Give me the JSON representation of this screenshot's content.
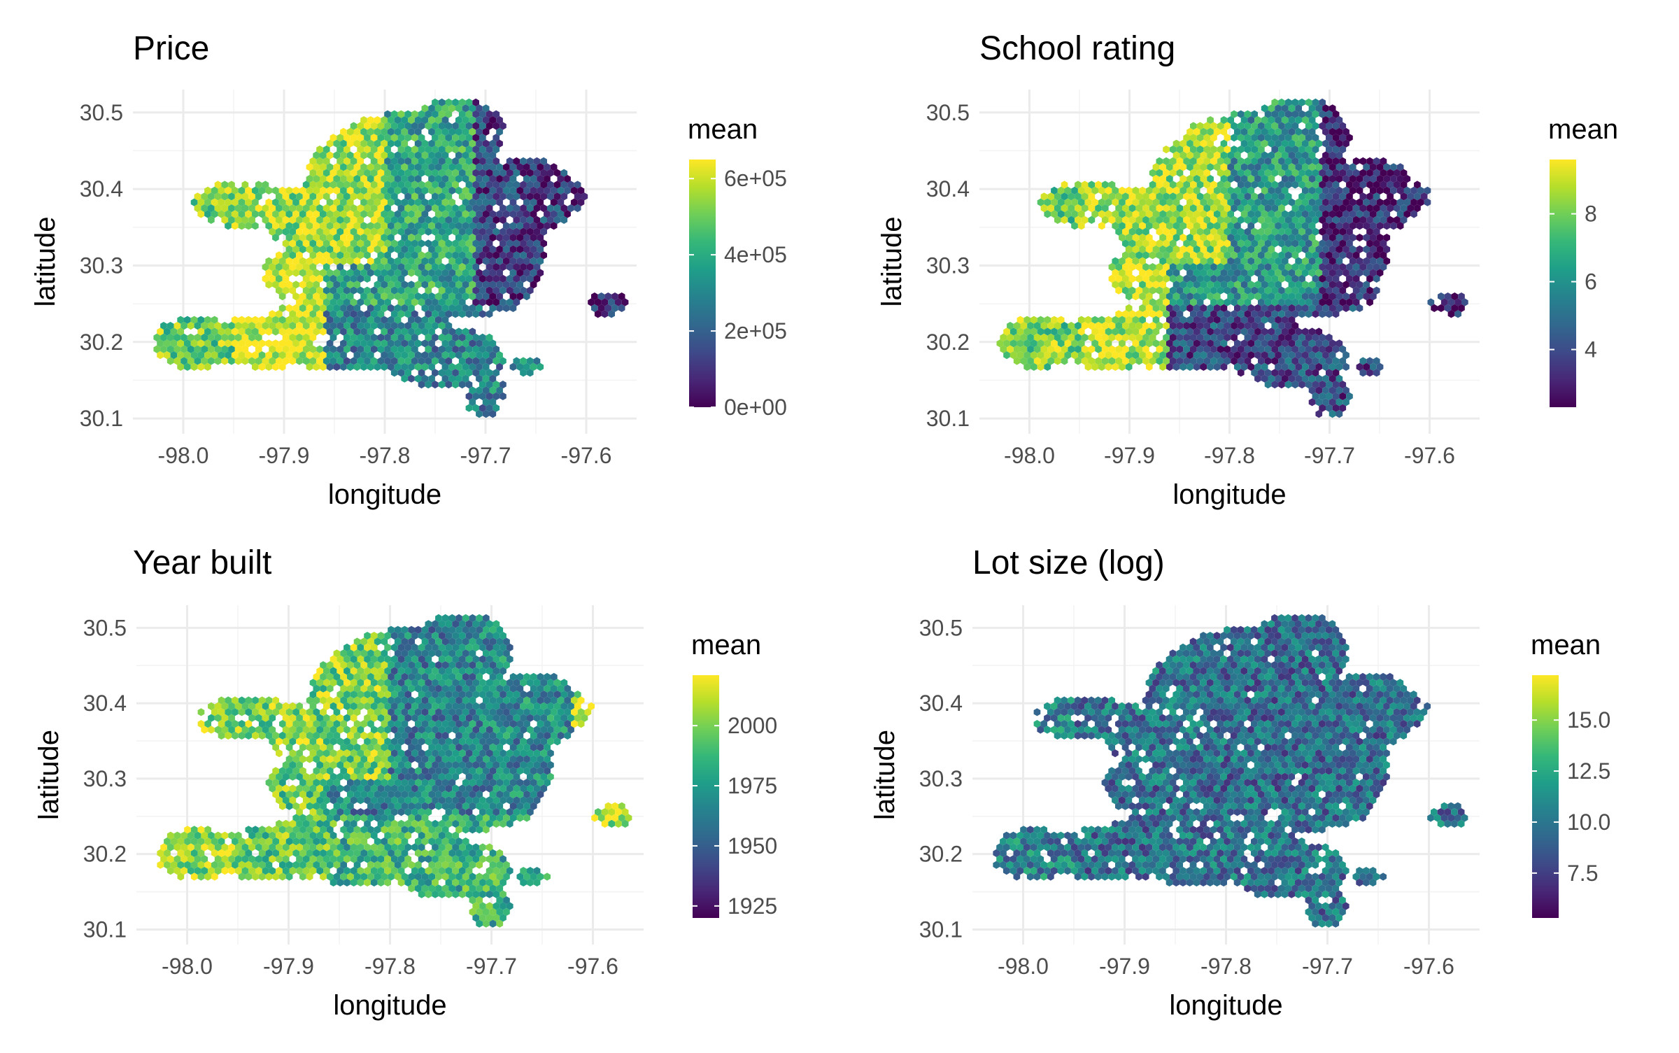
{
  "colors": {
    "viridis": [
      "#440154",
      "#482777",
      "#3e4a89",
      "#31688e",
      "#26828e",
      "#1f9e89",
      "#35b779",
      "#6ece58",
      "#b5de2b",
      "#fde725"
    ],
    "grid": "#ebebeb",
    "tick_text": "#4d4d4d"
  },
  "chart_data": [
    {
      "type": "heatmap",
      "title": "Price",
      "xlabel": "longitude",
      "ylabel": "latitude",
      "xlim": [
        -98.05,
        -97.55
      ],
      "ylim": [
        30.08,
        30.53
      ],
      "x_ticks": [
        "-98.0",
        "-97.9",
        "-97.8",
        "-97.7",
        "-97.6"
      ],
      "x_tick_values": [
        -98.0,
        -97.9,
        -97.8,
        -97.7,
        -97.6
      ],
      "y_ticks": [
        "30.1",
        "30.2",
        "30.3",
        "30.4",
        "30.5"
      ],
      "y_tick_values": [
        30.1,
        30.2,
        30.3,
        30.4,
        30.5
      ],
      "grid": true,
      "legend": {
        "title": "mean",
        "position": "right",
        "labels": [
          "0e+00",
          "2e+05",
          "4e+05",
          "6e+05"
        ],
        "values": [
          0,
          200000,
          400000,
          600000
        ],
        "range": [
          0,
          650000
        ]
      },
      "values_by_region": {
        "west": 500000,
        "northwest": 560000,
        "west_central": 620000,
        "downtown": 380000,
        "south": 290000,
        "east": 120000,
        "far_east": 80000
      }
    },
    {
      "type": "heatmap",
      "title": "School rating",
      "xlabel": "longitude",
      "ylabel": "latitude",
      "xlim": [
        -98.05,
        -97.55
      ],
      "ylim": [
        30.08,
        30.53
      ],
      "x_ticks": [
        "-98.0",
        "-97.9",
        "-97.8",
        "-97.7",
        "-97.6"
      ],
      "x_tick_values": [
        -98.0,
        -97.9,
        -97.8,
        -97.7,
        -97.6
      ],
      "y_ticks": [
        "30.1",
        "30.2",
        "30.3",
        "30.4",
        "30.5"
      ],
      "y_tick_values": [
        30.1,
        30.2,
        30.3,
        30.4,
        30.5
      ],
      "grid": true,
      "legend": {
        "title": "mean",
        "position": "right",
        "labels": [
          "4",
          "6",
          "8"
        ],
        "values": [
          4,
          6,
          8
        ],
        "range": [
          2.3,
          9.6
        ]
      },
      "values_by_region": {
        "west": 8.0,
        "northwest": 8.6,
        "west_central": 8.8,
        "downtown": 6.2,
        "south": 4.0,
        "east": 3.2,
        "far_east": 3.0
      }
    },
    {
      "type": "heatmap",
      "title": "Year built",
      "xlabel": "longitude",
      "ylabel": "latitude",
      "xlim": [
        -98.05,
        -97.55
      ],
      "ylim": [
        30.08,
        30.53
      ],
      "x_ticks": [
        "-98.0",
        "-97.9",
        "-97.8",
        "-97.7",
        "-97.6"
      ],
      "x_tick_values": [
        -98.0,
        -97.9,
        -97.8,
        -97.7,
        -97.6
      ],
      "y_ticks": [
        "30.1",
        "30.2",
        "30.3",
        "30.4",
        "30.5"
      ],
      "y_tick_values": [
        30.1,
        30.2,
        30.3,
        30.4,
        30.5
      ],
      "grid": true,
      "legend": {
        "title": "mean",
        "position": "right",
        "labels": [
          "1925",
          "1950",
          "1975",
          "2000"
        ],
        "values": [
          1925,
          1950,
          1975,
          2000
        ],
        "range": [
          1920,
          2021
        ]
      },
      "values_by_region": {
        "west": 2005,
        "northwest": 2000,
        "west_central": 1995,
        "downtown": 1965,
        "south": 1985,
        "east": 1968,
        "far_east": 2010
      }
    },
    {
      "type": "heatmap",
      "title": "Lot size (log)",
      "xlabel": "longitude",
      "ylabel": "latitude",
      "xlim": [
        -98.05,
        -97.55
      ],
      "ylim": [
        30.08,
        30.53
      ],
      "x_ticks": [
        "-98.0",
        "-97.9",
        "-97.8",
        "-97.7",
        "-97.6"
      ],
      "x_tick_values": [
        -98.0,
        -97.9,
        -97.8,
        -97.7,
        -97.6
      ],
      "y_ticks": [
        "30.1",
        "30.2",
        "30.3",
        "30.4",
        "30.5"
      ],
      "y_tick_values": [
        30.1,
        30.2,
        30.3,
        30.4,
        30.5
      ],
      "grid": true,
      "legend": {
        "title": "mean",
        "position": "right",
        "labels": [
          "7.5",
          "10.0",
          "12.5",
          "15.0"
        ],
        "values": [
          7.5,
          10.0,
          12.5,
          15.0
        ],
        "range": [
          5.3,
          17.2
        ]
      },
      "values_by_region": {
        "west": 10.6,
        "northwest": 9.9,
        "west_central": 9.6,
        "downtown": 9.5,
        "south": 9.8,
        "east": 9.6,
        "far_east": 9.8
      }
    }
  ]
}
